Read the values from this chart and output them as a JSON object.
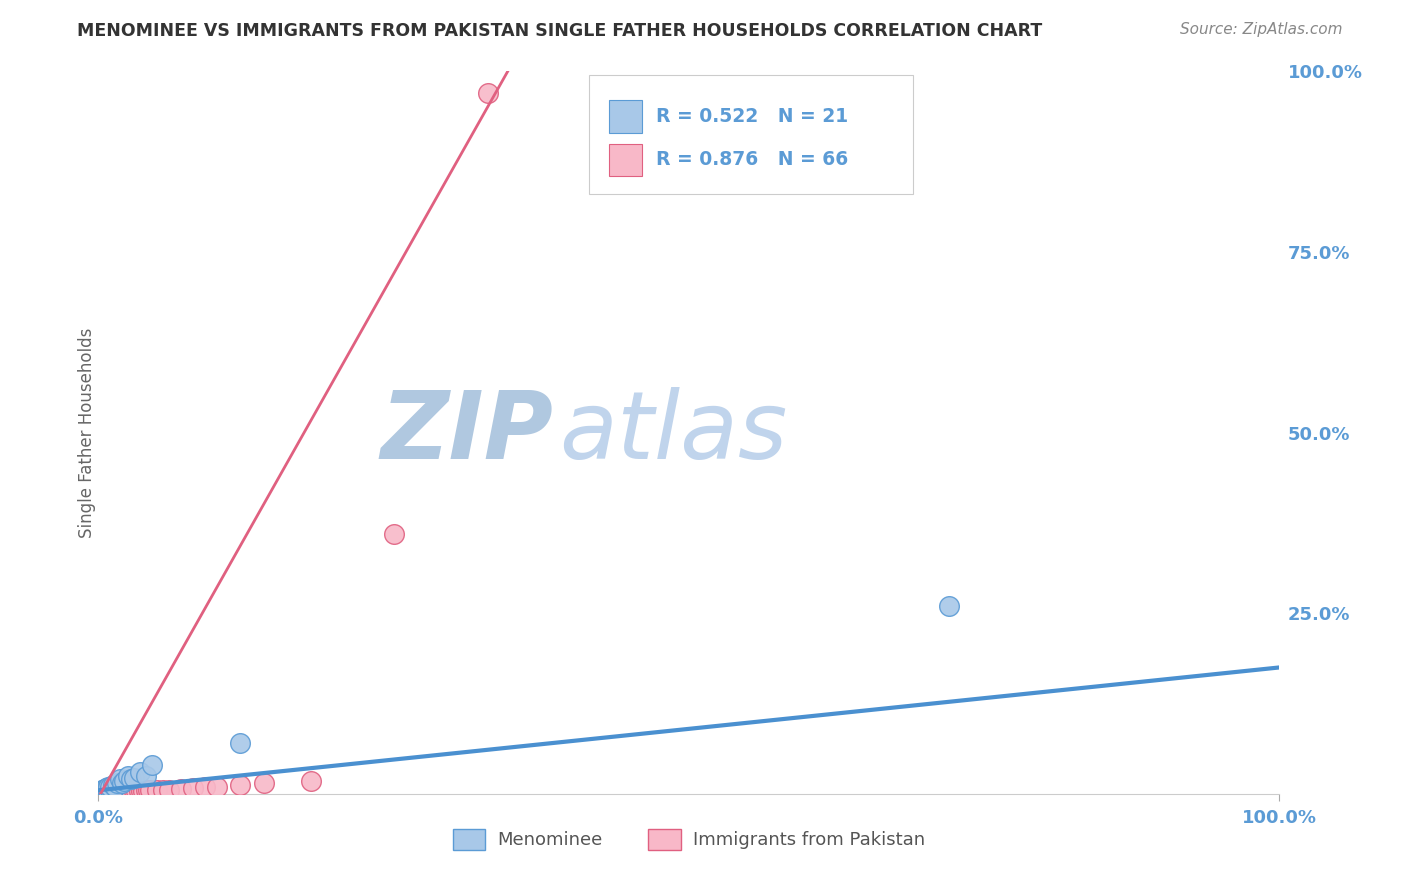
{
  "title": "MENOMINEE VS IMMIGRANTS FROM PAKISTAN SINGLE FATHER HOUSEHOLDS CORRELATION CHART",
  "source": "Source: ZipAtlas.com",
  "ylabel": "Single Father Households",
  "legend_r1": "R = 0.522",
  "legend_n1": "N = 21",
  "legend_r2": "R = 0.876",
  "legend_n2": "N = 66",
  "menominee_color": "#a8c8e8",
  "menominee_edge": "#5b9bd5",
  "pakistan_color": "#f8b8c8",
  "pakistan_edge": "#e06080",
  "trendline_blue": "#4a90d0",
  "trendline_pink": "#e06080",
  "background_color": "#ffffff",
  "watermark_color_zip": "#b8cfe8",
  "watermark_color_atlas": "#c8ddf0",
  "grid_color": "#d0d8e0",
  "tick_color": "#5b9bd5",
  "title_color": "#333333",
  "source_color": "#888888",
  "legend_text_color": "#555555",
  "menominee_x": [
    0.002,
    0.003,
    0.004,
    0.006,
    0.007,
    0.008,
    0.01,
    0.012,
    0.014,
    0.016,
    0.018,
    0.02,
    0.022,
    0.025,
    0.028,
    0.03,
    0.035,
    0.04,
    0.045,
    0.12,
    0.72
  ],
  "menominee_y": [
    0.004,
    0.006,
    0.005,
    0.008,
    0.007,
    0.009,
    0.01,
    0.012,
    0.01,
    0.015,
    0.02,
    0.015,
    0.018,
    0.025,
    0.02,
    0.022,
    0.03,
    0.025,
    0.04,
    0.07,
    0.26
  ],
  "pakistan_x": [
    0.001,
    0.002,
    0.003,
    0.003,
    0.004,
    0.004,
    0.005,
    0.005,
    0.005,
    0.006,
    0.006,
    0.007,
    0.007,
    0.008,
    0.008,
    0.009,
    0.009,
    0.01,
    0.01,
    0.01,
    0.011,
    0.011,
    0.012,
    0.012,
    0.013,
    0.013,
    0.014,
    0.014,
    0.015,
    0.015,
    0.016,
    0.016,
    0.017,
    0.017,
    0.018,
    0.018,
    0.019,
    0.019,
    0.02,
    0.02,
    0.022,
    0.022,
    0.024,
    0.024,
    0.026,
    0.028,
    0.03,
    0.032,
    0.034,
    0.036,
    0.038,
    0.04,
    0.042,
    0.044,
    0.05,
    0.055,
    0.06,
    0.07,
    0.08,
    0.09,
    0.1,
    0.12,
    0.14,
    0.18,
    0.25,
    0.33
  ],
  "pakistan_y": [
    0.002,
    0.002,
    0.002,
    0.003,
    0.002,
    0.004,
    0.002,
    0.003,
    0.004,
    0.002,
    0.003,
    0.002,
    0.003,
    0.002,
    0.004,
    0.002,
    0.003,
    0.002,
    0.003,
    0.004,
    0.002,
    0.003,
    0.002,
    0.003,
    0.002,
    0.003,
    0.002,
    0.003,
    0.002,
    0.003,
    0.002,
    0.003,
    0.002,
    0.003,
    0.002,
    0.003,
    0.002,
    0.003,
    0.002,
    0.003,
    0.002,
    0.003,
    0.002,
    0.003,
    0.003,
    0.003,
    0.004,
    0.004,
    0.004,
    0.004,
    0.004,
    0.005,
    0.005,
    0.005,
    0.005,
    0.006,
    0.006,
    0.007,
    0.008,
    0.009,
    0.01,
    0.012,
    0.015,
    0.018,
    0.36,
    0.97
  ],
  "trendline_blue_slope": 0.17,
  "trendline_blue_intercept": 0.005,
  "trendline_pink_slope": 2.9,
  "trendline_pink_intercept": -0.005,
  "xlim": [
    0.0,
    1.0
  ],
  "ylim": [
    0.0,
    1.0
  ],
  "yticks": [
    0.0,
    0.25,
    0.5,
    0.75,
    1.0
  ],
  "ytick_labels": [
    "",
    "25.0%",
    "50.0%",
    "75.0%",
    "100.0%"
  ]
}
